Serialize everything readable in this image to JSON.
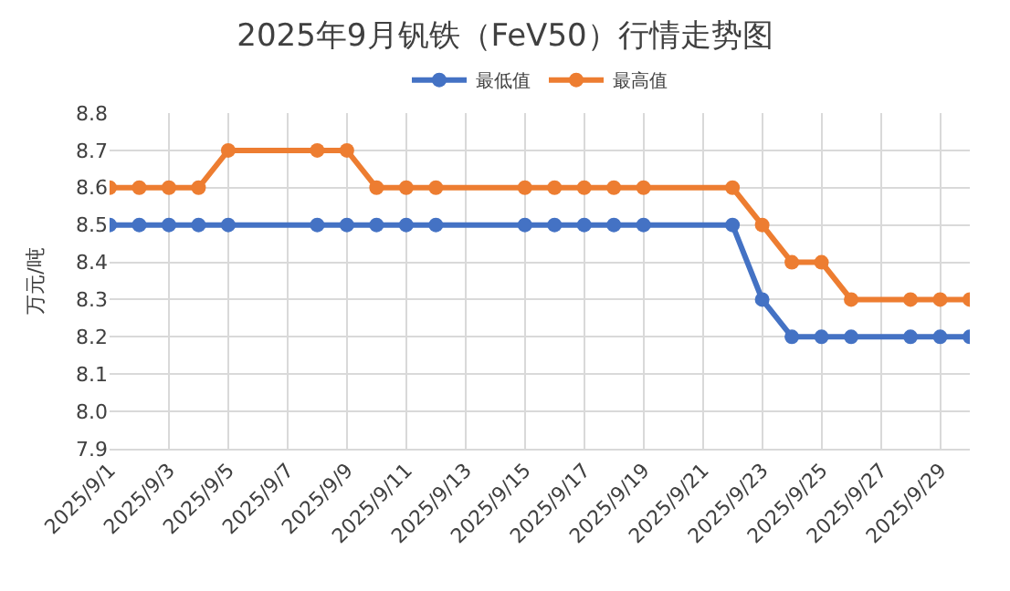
{
  "chart_data": {
    "type": "line",
    "title": "2025年9月钒铁（FeV50）行情走势图",
    "ylabel": "万元/吨",
    "x": [
      "2025-09-01",
      "2025-09-02",
      "2025-09-03",
      "2025-09-04",
      "2025-09-05",
      "2025-09-08",
      "2025-09-09",
      "2025-09-10",
      "2025-09-11",
      "2025-09-12",
      "2025-09-15",
      "2025-09-16",
      "2025-09-17",
      "2025-09-18",
      "2025-09-19",
      "2025-09-22",
      "2025-09-23",
      "2025-09-24",
      "2025-09-25",
      "2025-09-26",
      "2025-09-28",
      "2025-09-29",
      "2025-09-30"
    ],
    "series": [
      {
        "name": "最低值",
        "color": "#4472c4",
        "values": [
          8.5,
          8.5,
          8.5,
          8.5,
          8.5,
          8.5,
          8.5,
          8.5,
          8.5,
          8.5,
          8.5,
          8.5,
          8.5,
          8.5,
          8.5,
          8.5,
          8.3,
          8.2,
          8.2,
          8.2,
          8.2,
          8.2,
          8.2
        ]
      },
      {
        "name": "最高值",
        "color": "#ed7d31",
        "values": [
          8.6,
          8.6,
          8.6,
          8.6,
          8.7,
          8.7,
          8.7,
          8.6,
          8.6,
          8.6,
          8.6,
          8.6,
          8.6,
          8.6,
          8.6,
          8.6,
          8.5,
          8.4,
          8.4,
          8.3,
          8.3,
          8.3,
          8.3
        ]
      }
    ],
    "xlim": [
      "2025-09-01",
      "2025-09-30"
    ],
    "xticks": [
      {
        "value": "2025-09-01",
        "label": "2025/9/1"
      },
      {
        "value": "2025-09-03",
        "label": "2025/9/3"
      },
      {
        "value": "2025-09-05",
        "label": "2025/9/5"
      },
      {
        "value": "2025-09-07",
        "label": "2025/9/7"
      },
      {
        "value": "2025-09-09",
        "label": "2025/9/9"
      },
      {
        "value": "2025-09-11",
        "label": "2025/9/11"
      },
      {
        "value": "2025-09-13",
        "label": "2025/9/13"
      },
      {
        "value": "2025-09-15",
        "label": "2025/9/15"
      },
      {
        "value": "2025-09-17",
        "label": "2025/9/17"
      },
      {
        "value": "2025-09-19",
        "label": "2025/9/19"
      },
      {
        "value": "2025-09-21",
        "label": "2025/9/21"
      },
      {
        "value": "2025-09-23",
        "label": "2025/9/23"
      },
      {
        "value": "2025-09-25",
        "label": "2025/9/25"
      },
      {
        "value": "2025-09-27",
        "label": "2025/9/27"
      },
      {
        "value": "2025-09-29",
        "label": "2025/9/29"
      }
    ],
    "ylim": [
      7.9,
      8.8
    ],
    "yticks": [
      7.9,
      {
        "value": 8.0,
        "label": "8.0"
      },
      8.1,
      8.2,
      8.3,
      8.4,
      8.5,
      8.6,
      8.7,
      8.8
    ],
    "grid": true,
    "legend": "top",
    "marker": "circle",
    "line_style": "solid"
  }
}
